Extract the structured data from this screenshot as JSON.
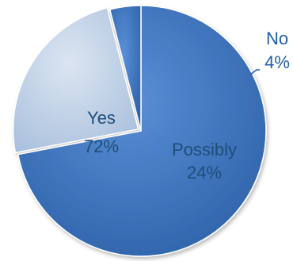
{
  "chart_data": {
    "type": "pie",
    "title": "",
    "slices": [
      {
        "label": "Yes",
        "value": 72,
        "value_label": "72%",
        "color": "#3a75c4"
      },
      {
        "label": "Possibly",
        "value": 24,
        "value_label": "24%",
        "color": "#b8cce4"
      },
      {
        "label": "No",
        "value": 4,
        "value_label": "4%",
        "color": "#3a75c4"
      }
    ],
    "label_colors": {
      "Yes": "#1f4e79",
      "Possibly": "#1f4e79",
      "No": "#1f5fa8"
    },
    "legend": "none",
    "start_angle_deg": 90,
    "direction": "clockwise"
  }
}
